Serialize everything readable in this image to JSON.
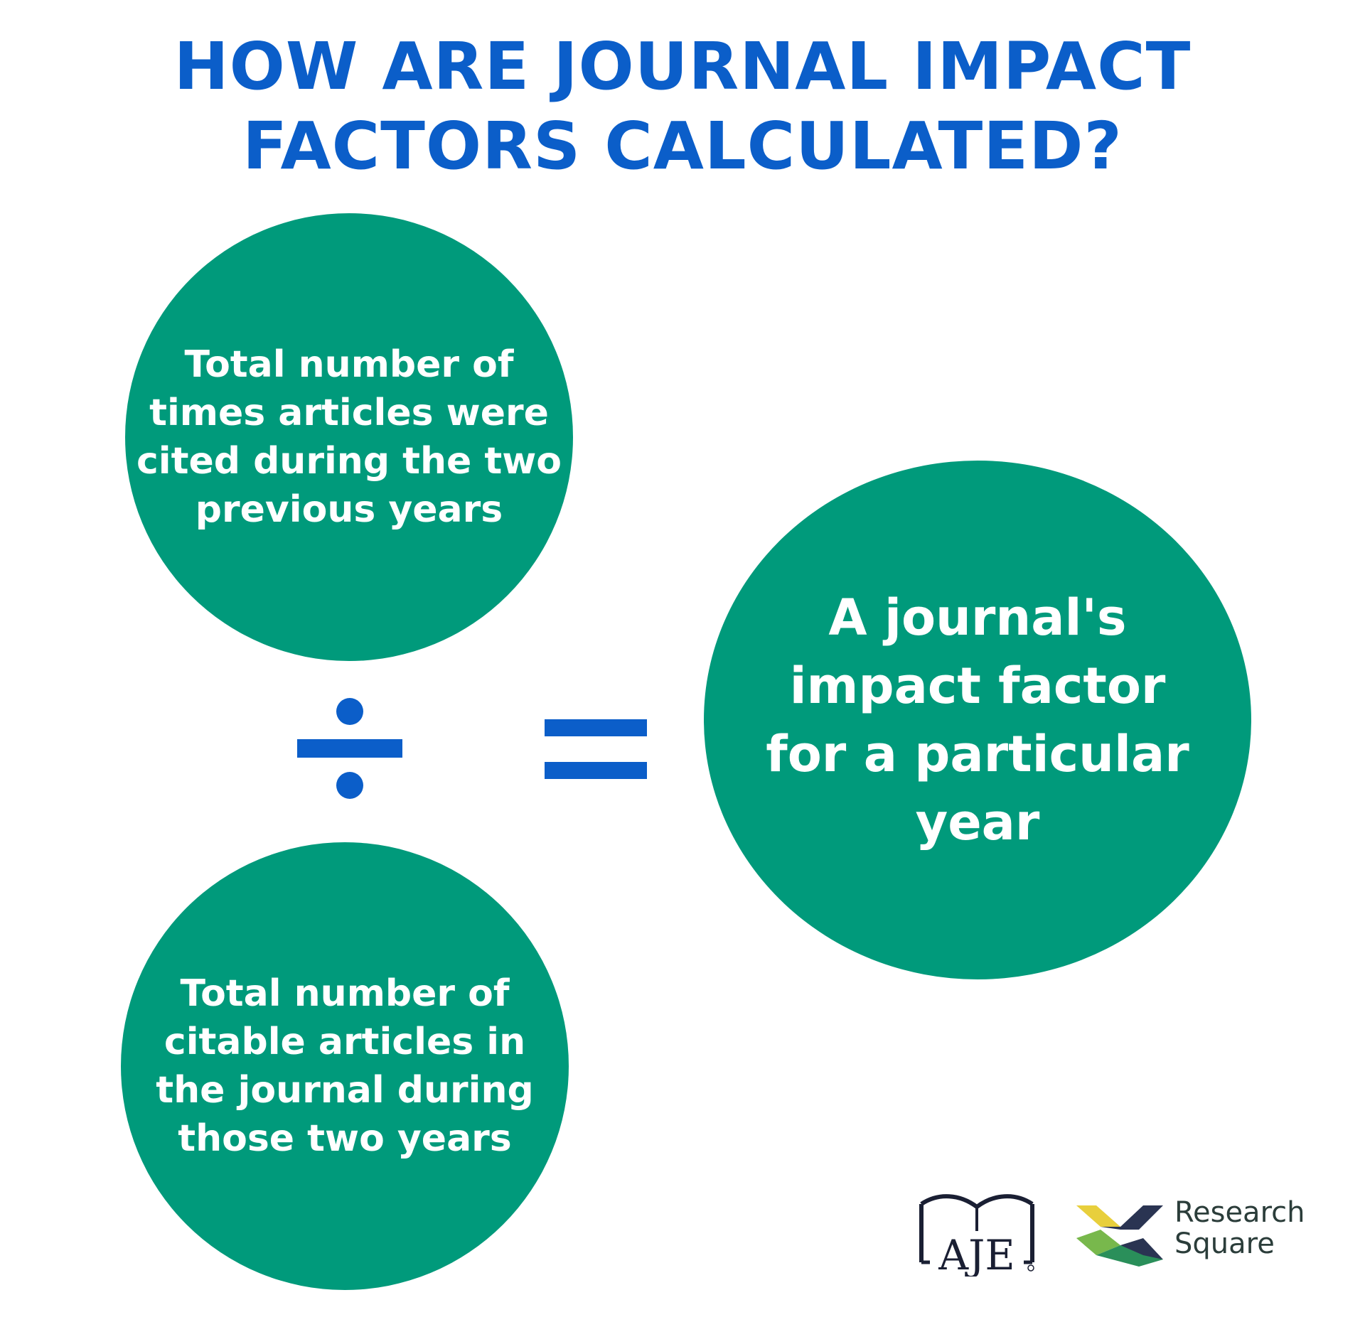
{
  "title": {
    "line1": "HOW ARE JOURNAL IMPACT",
    "line2": "FACTORS CALCULATED?"
  },
  "numerator": {
    "lines": [
      "Total number of",
      "times articles were",
      "cited during the two",
      "previous years"
    ]
  },
  "denominator": {
    "lines": [
      "Total number of",
      "citable articles in",
      "the journal during",
      "those two years"
    ]
  },
  "result": {
    "lines": [
      "A journal's",
      "impact factor",
      "for a particular",
      "year"
    ]
  },
  "operators": {
    "divide": "divide-icon",
    "equals": "equals-icon"
  },
  "logos": {
    "aje": "AJE",
    "research_square_line1": "Research",
    "research_square_line2": "Square"
  },
  "colors": {
    "title_blue": "#0b5ec9",
    "circle_green": "#009a7b",
    "text_white": "#ffffff"
  }
}
